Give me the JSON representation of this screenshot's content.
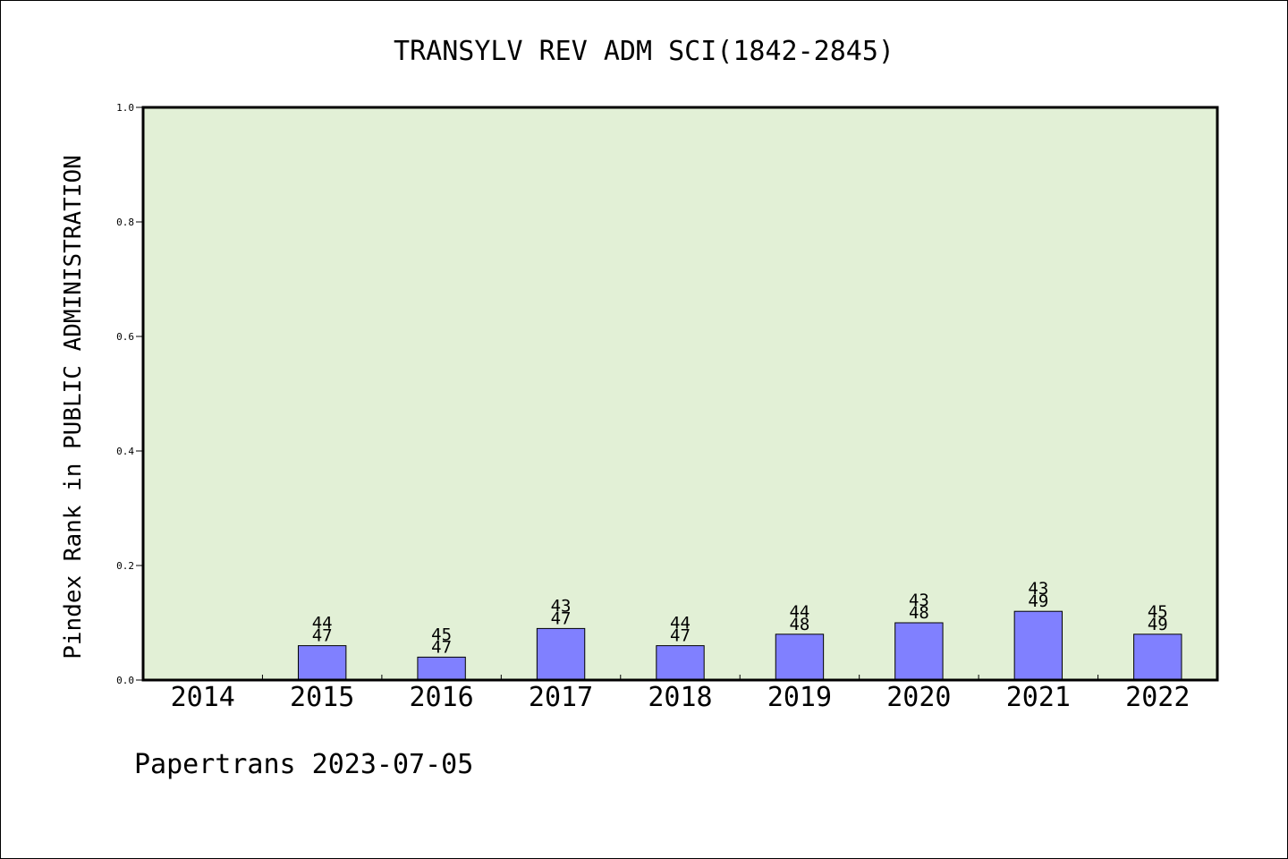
{
  "chart_data": {
    "type": "bar",
    "title": "TRANSYLV REV ADM SCI(1842-2845)",
    "ylabel": "Pindex Rank in PUBLIC ADMINISTRATION",
    "xlabel": "",
    "footer": "Papertrans 2023-07-05",
    "categories": [
      "2014",
      "2015",
      "2016",
      "2017",
      "2018",
      "2019",
      "2020",
      "2021",
      "2022"
    ],
    "values": [
      0,
      0.06,
      0.04,
      0.09,
      0.06,
      0.08,
      0.1,
      0.12,
      0.08
    ],
    "bar_labels": [
      null,
      [
        "44",
        "47"
      ],
      [
        "45",
        "47"
      ],
      [
        "43",
        "47"
      ],
      [
        "44",
        "47"
      ],
      [
        "44",
        "48"
      ],
      [
        "43",
        "48"
      ],
      [
        "43",
        "49"
      ],
      [
        "45",
        "49"
      ]
    ],
    "ylim": [
      0,
      1.0
    ],
    "yticks": [
      "0.0",
      "0.2",
      "0.4",
      "0.6",
      "0.8",
      "1.0"
    ],
    "grid": false,
    "colors": {
      "plot_background": "#e2f0d6",
      "bar_fill": "#8080ff",
      "bar_stroke": "#000000"
    }
  }
}
